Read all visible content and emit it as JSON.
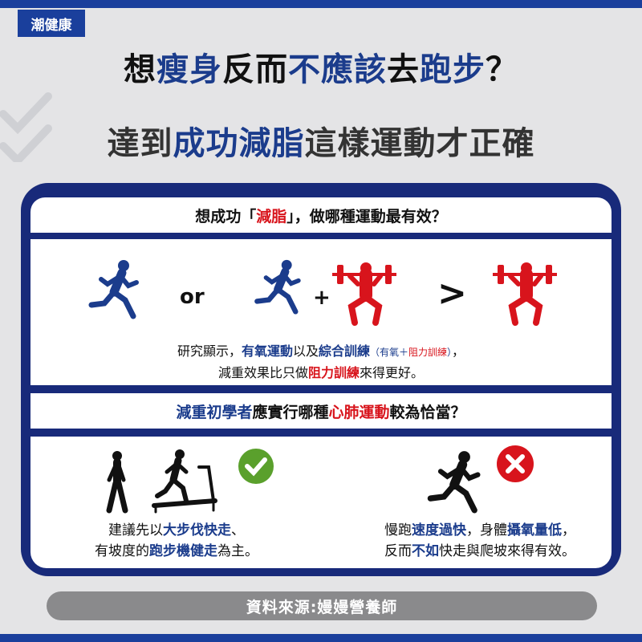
{
  "header": {
    "logo_text": "潮健康"
  },
  "title": {
    "line1": [
      {
        "text": "想",
        "c": "black"
      },
      {
        "text": "瘦身",
        "c": "blue"
      },
      {
        "text": "反而",
        "c": "black"
      },
      {
        "text": "不應該",
        "c": "blue"
      },
      {
        "text": "去",
        "c": "black"
      },
      {
        "text": "跑步",
        "c": "blue"
      },
      {
        "text": "？",
        "c": "black"
      }
    ],
    "line2": [
      {
        "text": "達到",
        "c": "black"
      },
      {
        "text": "成功減脂",
        "c": "blue"
      },
      {
        "text": "這樣運動才正確",
        "c": "black"
      }
    ]
  },
  "section1": {
    "question": [
      {
        "text": "想成功「",
        "c": "black"
      },
      {
        "text": "減脂",
        "c": "red"
      },
      {
        "text": "」，做哪種運動最有效？",
        "c": "black"
      }
    ],
    "or_label": "or",
    "plus_label": "+",
    "gt_label": ">",
    "text_line1": [
      {
        "text": "研究顯示，",
        "c": "black"
      },
      {
        "text": "有氧運動",
        "c": "blue",
        "b": true
      },
      {
        "text": "以及",
        "c": "black"
      },
      {
        "text": "綜合訓練",
        "c": "blue",
        "b": true
      },
      {
        "text": "（有氧＋",
        "c": "blue",
        "s": true
      },
      {
        "text": "阻力訓練",
        "c": "red",
        "s": true
      },
      {
        "text": "）",
        "c": "blue",
        "s": true
      },
      {
        "text": "，",
        "c": "black"
      }
    ],
    "text_line2": [
      {
        "text": "減重效果比只做",
        "c": "black"
      },
      {
        "text": "阻力訓練",
        "c": "red",
        "b": true
      },
      {
        "text": "來得更好。",
        "c": "black"
      }
    ]
  },
  "section2": {
    "question": [
      {
        "text": "減重初學者",
        "c": "blue"
      },
      {
        "text": "應實行哪種",
        "c": "black"
      },
      {
        "text": "心肺運動",
        "c": "red"
      },
      {
        "text": "較為恰當？",
        "c": "black"
      }
    ],
    "left_line1": [
      {
        "text": "建議先以",
        "c": "black"
      },
      {
        "text": "大步伐快走",
        "c": "blue",
        "b": true
      },
      {
        "text": "、",
        "c": "black"
      }
    ],
    "left_line2": [
      {
        "text": "有坡度的",
        "c": "black"
      },
      {
        "text": "跑步機健走",
        "c": "blue",
        "b": true
      },
      {
        "text": "為主。",
        "c": "black"
      }
    ],
    "right_line1": [
      {
        "text": "慢跑",
        "c": "black"
      },
      {
        "text": "速度過快",
        "c": "blue",
        "b": true
      },
      {
        "text": "，身體",
        "c": "black"
      },
      {
        "text": "攝氧量低",
        "c": "blue",
        "b": true
      },
      {
        "text": "，",
        "c": "black"
      }
    ],
    "right_line2": [
      {
        "text": "反而",
        "c": "black"
      },
      {
        "text": "不如",
        "c": "blue",
        "b": true
      },
      {
        "text": "快走與爬坡來得有效。",
        "c": "black"
      }
    ]
  },
  "footer": {
    "source": "資料來源:嫚嫚營養師"
  },
  "icons": {
    "runner": "runner-icon",
    "lifter": "weightlifter-icon",
    "walker": "walker-icon",
    "treadmill": "treadmill-icon",
    "check": "check-icon",
    "cross": "cross-icon"
  },
  "colors": {
    "brand_blue": "#1b3c8c",
    "accent_red": "#d8141c",
    "card_navy": "#182a7a",
    "check_green": "#5aa02c"
  }
}
